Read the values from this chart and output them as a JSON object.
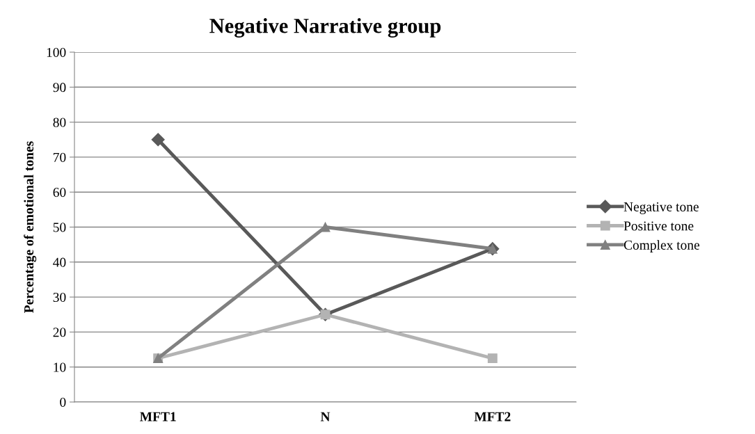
{
  "chart_data": {
    "type": "line",
    "title": "Negative Narrative group",
    "ylabel": "Percentage of emotional tones",
    "categories": [
      "MFT1",
      "N",
      "MFT2"
    ],
    "series": [
      {
        "name": "Negative tone",
        "color": "#595959",
        "marker": "diamond",
        "values": [
          75,
          25,
          43.8
        ]
      },
      {
        "name": "Positive tone",
        "color": "#b3b3b3",
        "marker": "square",
        "values": [
          12.5,
          25,
          12.5
        ]
      },
      {
        "name": "Complex tone",
        "color": "#808080",
        "marker": "triangle",
        "values": [
          12.5,
          50,
          43.8
        ]
      }
    ],
    "ylim": [
      0,
      100
    ],
    "yticks": [
      0,
      10,
      20,
      30,
      40,
      50,
      60,
      70,
      80,
      90,
      100
    ],
    "grid": "y",
    "legend": "right"
  }
}
